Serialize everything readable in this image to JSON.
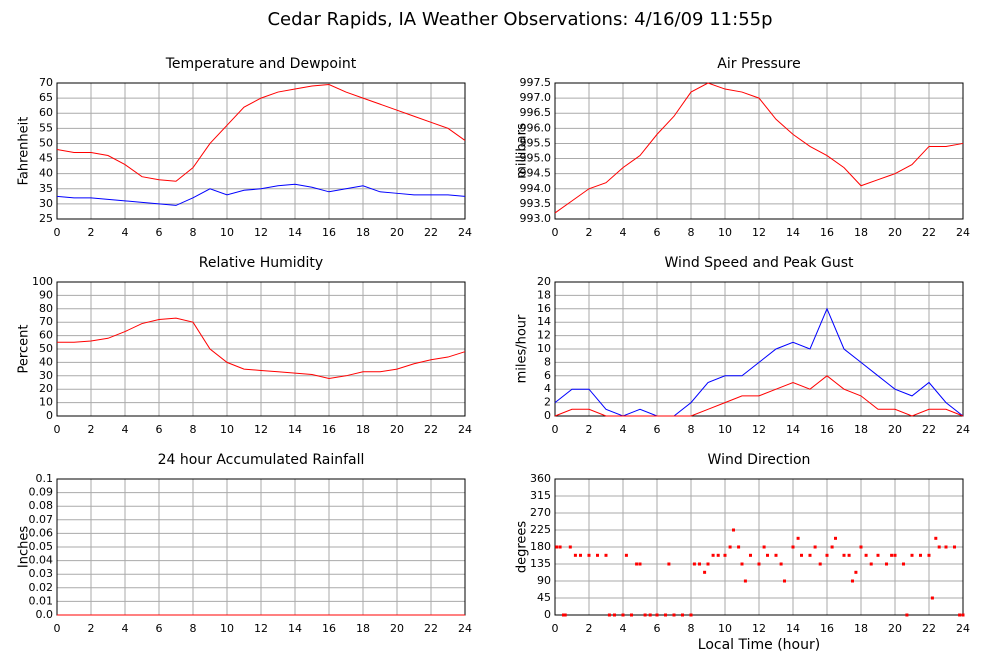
{
  "title": "Cedar Rapids, IA Weather Observations: 4/16/09 11:55p",
  "chart_data": [
    {
      "type": "line",
      "title": "Temperature and Dewpoint",
      "y_label": "Fahrenheit",
      "x": [
        0,
        1,
        2,
        3,
        4,
        5,
        6,
        7,
        8,
        9,
        10,
        11,
        12,
        13,
        14,
        15,
        16,
        17,
        18,
        19,
        20,
        21,
        22,
        23,
        24
      ],
      "series": [
        {
          "color": "#ff0000",
          "values": [
            48,
            47,
            47,
            46,
            43,
            39,
            38,
            37.5,
            42,
            50,
            56,
            62,
            65,
            67,
            68,
            69,
            69.5,
            67,
            65,
            63,
            61,
            59,
            57,
            55,
            51
          ]
        },
        {
          "color": "#0000ff",
          "values": [
            32.5,
            32,
            32,
            31.5,
            31,
            30.5,
            30,
            29.5,
            32,
            35,
            33,
            34.5,
            35,
            36,
            36.5,
            35.5,
            34,
            35,
            36,
            34,
            33.5,
            33,
            33,
            33,
            32.5
          ]
        }
      ],
      "xlim": [
        0,
        24
      ],
      "xticks": [
        0,
        2,
        4,
        6,
        8,
        10,
        12,
        14,
        16,
        18,
        20,
        22,
        24
      ],
      "ylim": [
        25,
        70
      ],
      "yticks": [
        25,
        30,
        35,
        40,
        45,
        50,
        55,
        60,
        65,
        70
      ],
      "grid": true
    },
    {
      "type": "line",
      "title": "Air Pressure",
      "y_label": "millibars",
      "x": [
        0,
        1,
        2,
        3,
        4,
        5,
        6,
        7,
        8,
        9,
        10,
        11,
        12,
        13,
        14,
        15,
        16,
        17,
        18,
        19,
        20,
        21,
        22,
        23,
        24
      ],
      "series": [
        {
          "color": "#ff0000",
          "values": [
            993.2,
            993.6,
            994,
            994.2,
            994.7,
            995.1,
            995.8,
            996.4,
            997.2,
            997.5,
            997.3,
            997.2,
            997,
            996.3,
            995.8,
            995.4,
            995.1,
            994.7,
            994.1,
            994.3,
            994.5,
            994.8,
            995.4,
            995.4,
            995.5
          ]
        }
      ],
      "xlim": [
        0,
        24
      ],
      "xticks": [
        0,
        2,
        4,
        6,
        8,
        10,
        12,
        14,
        16,
        18,
        20,
        22,
        24
      ],
      "ylim": [
        993,
        997.5
      ],
      "yticks": [
        {
          "value": 993,
          "label": "993.0"
        },
        993.5,
        {
          "value": 994,
          "label": "994.0"
        },
        994.5,
        {
          "value": 995,
          "label": "995.0"
        },
        995.5,
        {
          "value": 996,
          "label": "996.0"
        },
        996.5,
        {
          "value": 997,
          "label": "997.0"
        },
        997.5
      ],
      "grid": true
    },
    {
      "type": "line",
      "title": "Relative Humidity",
      "y_label": "Percent",
      "x": [
        0,
        1,
        2,
        3,
        4,
        5,
        6,
        7,
        8,
        9,
        10,
        11,
        12,
        13,
        14,
        15,
        16,
        17,
        18,
        19,
        20,
        21,
        22,
        23,
        24
      ],
      "series": [
        {
          "color": "#ff0000",
          "values": [
            55,
            55,
            56,
            58,
            63,
            69,
            72,
            73,
            70,
            50,
            40,
            35,
            34,
            33,
            32,
            31,
            28,
            30,
            33,
            33,
            35,
            39,
            42,
            44,
            48
          ]
        }
      ],
      "xlim": [
        0,
        24
      ],
      "xticks": [
        0,
        2,
        4,
        6,
        8,
        10,
        12,
        14,
        16,
        18,
        20,
        22,
        24
      ],
      "ylim": [
        0,
        100
      ],
      "yticks": [
        0,
        10,
        20,
        30,
        40,
        50,
        60,
        70,
        80,
        90,
        100
      ],
      "grid": true
    },
    {
      "type": "line",
      "title": "Wind Speed and Peak Gust",
      "y_label": "miles/hour",
      "x": [
        0,
        1,
        2,
        3,
        4,
        5,
        6,
        7,
        8,
        9,
        10,
        11,
        12,
        13,
        14,
        15,
        16,
        17,
        18,
        19,
        20,
        21,
        22,
        23,
        24
      ],
      "series": [
        {
          "color": "#0000ff",
          "values": [
            2,
            4,
            4,
            1,
            0,
            1,
            0,
            0,
            2,
            5,
            6,
            6,
            8,
            10,
            11,
            10,
            16,
            10,
            8,
            6,
            4,
            3,
            5,
            2,
            0
          ]
        },
        {
          "color": "#ff0000",
          "values": [
            0,
            1,
            1,
            0,
            0,
            0,
            0,
            0,
            0,
            1,
            2,
            3,
            3,
            4,
            5,
            4,
            6,
            4,
            3,
            1,
            1,
            0,
            1,
            1,
            0
          ]
        }
      ],
      "xlim": [
        0,
        24
      ],
      "xticks": [
        0,
        2,
        4,
        6,
        8,
        10,
        12,
        14,
        16,
        18,
        20,
        22,
        24
      ],
      "ylim": [
        0,
        20
      ],
      "yticks": [
        0,
        2,
        4,
        6,
        8,
        10,
        12,
        14,
        16,
        18,
        20
      ],
      "grid": true
    },
    {
      "type": "line",
      "title": "24 hour Accumulated Rainfall",
      "y_label": "Inches",
      "x": [
        0,
        24
      ],
      "series": [
        {
          "color": "#ff0000",
          "values": [
            0,
            0
          ]
        }
      ],
      "xlim": [
        0,
        24
      ],
      "xticks": [
        0,
        2,
        4,
        6,
        8,
        10,
        12,
        14,
        16,
        18,
        20,
        22,
        24
      ],
      "ylim": [
        0,
        0.1
      ],
      "yticks": [
        {
          "value": 0,
          "label": "0.0"
        },
        0.01,
        0.02,
        0.03,
        0.04,
        0.05,
        0.06,
        0.07,
        0.08,
        0.09,
        0.1
      ],
      "grid": true
    },
    {
      "type": "scatter",
      "title": "Wind Direction",
      "y_label": "degrees",
      "x_label": "Local Time (hour)",
      "color": "#ff0000",
      "x": [
        0.1,
        0.3,
        0.5,
        0.6,
        0.9,
        1.2,
        1.5,
        2,
        2.5,
        3,
        3.2,
        3.5,
        4,
        4.2,
        4.5,
        4.8,
        5,
        5.3,
        5.6,
        6,
        6.5,
        6.7,
        7,
        7.5,
        8,
        8.2,
        8.5,
        8.8,
        9,
        9.3,
        9.6,
        10,
        10.3,
        10.5,
        10.8,
        11,
        11.2,
        11.5,
        12,
        12.3,
        12.5,
        13,
        13.3,
        13.5,
        14,
        14.3,
        14.5,
        15,
        15.3,
        15.6,
        16,
        16.3,
        16.5,
        17,
        17.3,
        17.5,
        17.7,
        18,
        18.3,
        18.6,
        19,
        19.5,
        19.8,
        20,
        20.5,
        20.7,
        21,
        21.5,
        22,
        22.2,
        22.4,
        22.6,
        23,
        23.5,
        23.8,
        24
      ],
      "values": [
        180,
        180,
        0,
        0,
        180,
        158,
        158,
        158,
        158,
        158,
        0,
        0,
        0,
        158,
        0,
        135,
        135,
        0,
        0,
        0,
        0,
        135,
        0,
        0,
        0,
        135,
        135,
        113,
        135,
        158,
        158,
        158,
        180,
        225,
        180,
        135,
        90,
        158,
        135,
        180,
        158,
        158,
        135,
        90,
        180,
        203,
        158,
        158,
        180,
        135,
        158,
        180,
        203,
        158,
        158,
        90,
        113,
        180,
        158,
        135,
        158,
        135,
        158,
        158,
        135,
        0,
        158,
        158,
        158,
        45,
        203,
        180,
        180,
        180,
        0,
        0
      ],
      "xlim": [
        0,
        24
      ],
      "xticks": [
        0,
        2,
        4,
        6,
        8,
        10,
        12,
        14,
        16,
        18,
        20,
        22,
        24
      ],
      "ylim": [
        0,
        360
      ],
      "yticks": [
        0,
        45,
        90,
        135,
        180,
        225,
        270,
        315,
        360
      ],
      "grid": true
    }
  ]
}
